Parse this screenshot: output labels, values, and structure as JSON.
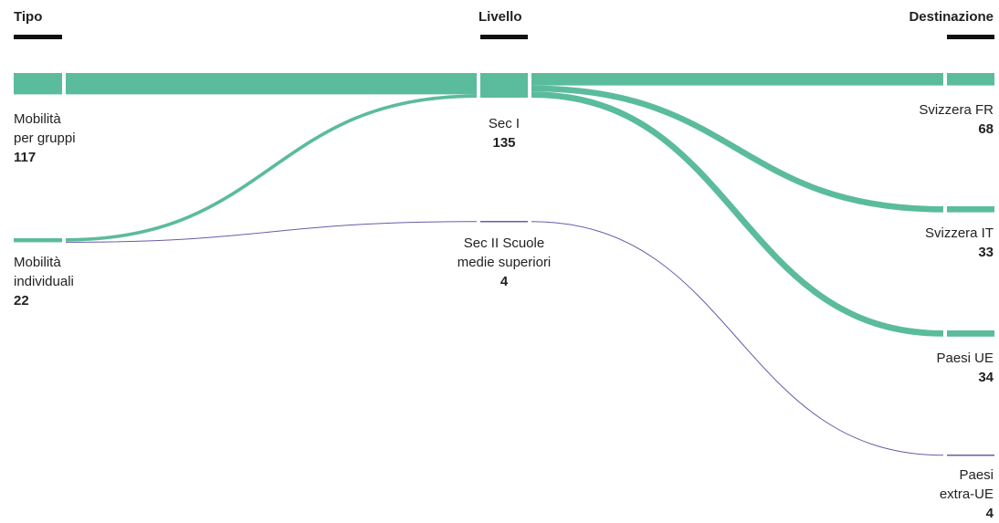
{
  "columns": {
    "tipo": "Tipo",
    "livello": "Livello",
    "destinazione": "Destinazione"
  },
  "nodes": {
    "mobilita_gruppi": {
      "line1": "Mobilità",
      "line2": "per gruppi",
      "value": "117"
    },
    "mobilita_individuali": {
      "line1": "Mobilità",
      "line2": "individuali",
      "value": "22"
    },
    "sec_i": {
      "line1": "Sec I",
      "value": "135"
    },
    "sec_ii": {
      "line1": "Sec II Scuole",
      "line2": "medie superiori",
      "value": "4"
    },
    "svizzera_fr": {
      "line1": "Svizzera FR",
      "value": "68"
    },
    "svizzera_it": {
      "line1": "Svizzera IT",
      "value": "33"
    },
    "paesi_ue": {
      "line1": "Paesi UE",
      "value": "34"
    },
    "paesi_extra_ue": {
      "line1": "Paesi",
      "line2": "extra-UE",
      "value": "4"
    }
  },
  "colors": {
    "sec_i_flow": "#5bbb9d",
    "sec_ii_flow": "#6b5aa8",
    "header_bar": "#111111"
  },
  "chart_data": {
    "type": "sankey",
    "stages": [
      "Tipo",
      "Livello",
      "Destinazione"
    ],
    "node_values": {
      "Mobilità per gruppi": 117,
      "Mobilità individuali": 22,
      "Sec I": 135,
      "Sec II Scuole medie superiori": 4,
      "Svizzera FR": 68,
      "Svizzera IT": 33,
      "Paesi UE": 34,
      "Paesi extra-UE": 4
    },
    "links": [
      {
        "source": "Mobilità per gruppi",
        "target": "Sec I",
        "value": 117
      },
      {
        "source": "Mobilità individuali",
        "target": "Sec I",
        "value": 18
      },
      {
        "source": "Mobilità individuali",
        "target": "Sec II Scuole medie superiori",
        "value": 4
      },
      {
        "source": "Sec I",
        "target": "Svizzera FR",
        "value": 68
      },
      {
        "source": "Sec I",
        "target": "Svizzera IT",
        "value": 33
      },
      {
        "source": "Sec I",
        "target": "Paesi UE",
        "value": 34
      },
      {
        "source": "Sec II Scuole medie superiori",
        "target": "Paesi extra-UE",
        "value": 4
      }
    ]
  }
}
